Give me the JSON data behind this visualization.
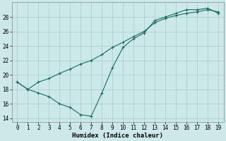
{
  "xlabel": "Humidex (Indice chaleur)",
  "background_color": "#cce8e8",
  "grid_color": "#aacfcf",
  "line_color": "#1a6b60",
  "x_line1": [
    0,
    1,
    2,
    3,
    4,
    5,
    6,
    7,
    8,
    9,
    10,
    11,
    12,
    13,
    14,
    15,
    16,
    17,
    18,
    19
  ],
  "y_line1": [
    19.0,
    18.0,
    17.5,
    17.0,
    16.0,
    15.5,
    14.5,
    14.3,
    17.5,
    21.0,
    23.8,
    25.0,
    25.8,
    27.5,
    28.0,
    28.5,
    29.0,
    29.0,
    29.2,
    28.5
  ],
  "x_line2": [
    0,
    1,
    2,
    3,
    4,
    5,
    6,
    7,
    8,
    9,
    10,
    11,
    12,
    13,
    14,
    15,
    16,
    17,
    18,
    19
  ],
  "y_line2": [
    19.0,
    18.0,
    19.0,
    19.5,
    20.2,
    20.8,
    21.5,
    22.0,
    22.8,
    23.8,
    24.5,
    25.3,
    26.0,
    27.2,
    27.8,
    28.2,
    28.5,
    28.7,
    29.0,
    28.7
  ],
  "xlim": [
    -0.5,
    19.5
  ],
  "ylim": [
    13.5,
    30.0
  ],
  "yticks": [
    14,
    16,
    18,
    20,
    22,
    24,
    26,
    28
  ],
  "xticks": [
    0,
    1,
    2,
    3,
    4,
    5,
    6,
    7,
    8,
    9,
    10,
    11,
    12,
    13,
    14,
    15,
    16,
    17,
    18,
    19
  ],
  "tick_fontsize": 5.5,
  "label_fontsize": 6.5,
  "figsize": [
    3.2,
    2.0
  ],
  "dpi": 100
}
